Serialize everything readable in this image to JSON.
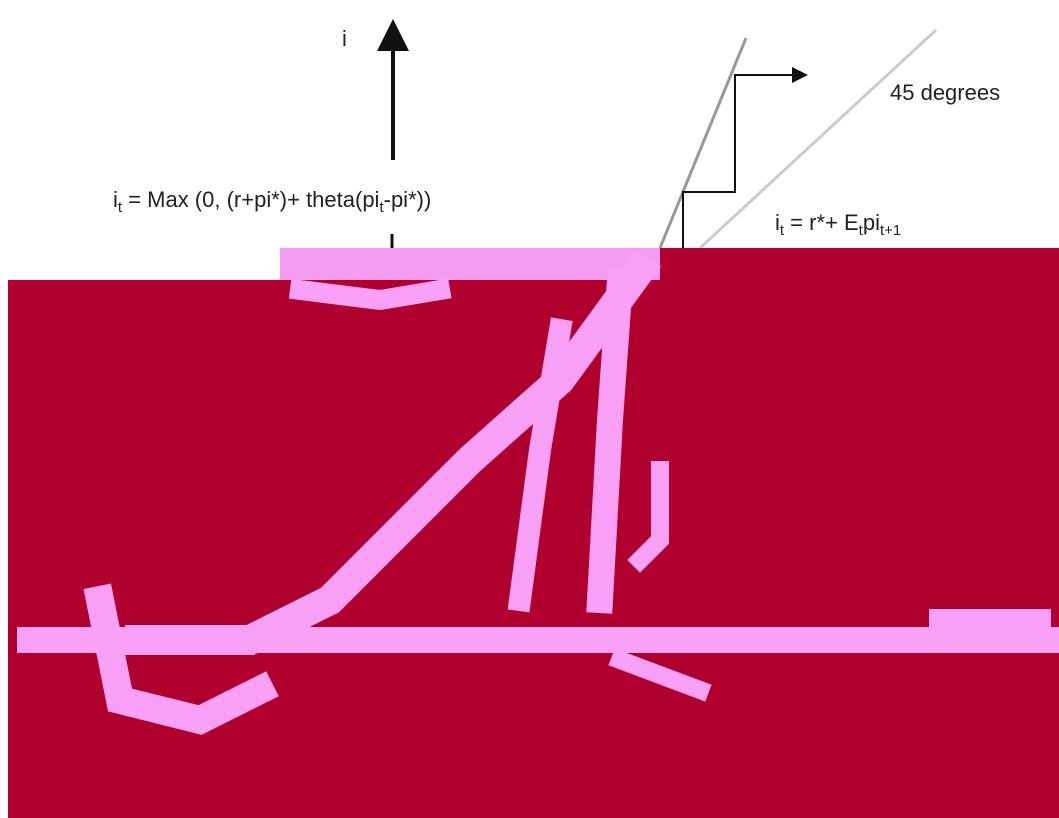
{
  "axis_label": "i",
  "rule_formula": [
    {
      "text": "i",
      "sub": false
    },
    {
      "text": "t",
      "sub": true
    },
    {
      "text": " = Max (0, (r+pi*)+ theta(pi",
      "sub": false
    },
    {
      "text": "t",
      "sub": true
    },
    {
      "text": "-pi*))",
      "sub": false
    }
  ],
  "fisher_formula": [
    {
      "text": "i",
      "sub": false
    },
    {
      "text": "t",
      "sub": true
    },
    {
      "text": " = r*+ E",
      "sub": false
    },
    {
      "text": "t",
      "sub": true
    },
    {
      "text": "pi",
      "sub": false
    },
    {
      "text": "t+1",
      "sub": true
    }
  ],
  "angle_label": "45 degrees"
}
